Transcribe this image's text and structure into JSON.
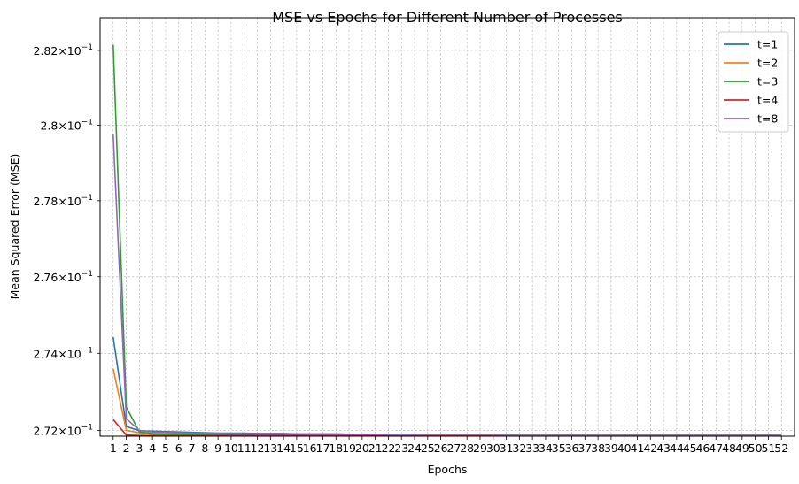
{
  "chart_data": {
    "type": "line",
    "title": "MSE vs Epochs for Different Number of Processes",
    "xlabel": "Epochs",
    "ylabel": "Mean Squared Error (MSE)",
    "yscale": "log",
    "ylim": [
      0.27185,
      0.28252
    ],
    "xlim": [
      0,
      53
    ],
    "grid": true,
    "legend_position": "top-right",
    "x": [
      1,
      2,
      3,
      4,
      5,
      6,
      7,
      8,
      9,
      10,
      11,
      12,
      13,
      14,
      15,
      16,
      17,
      18,
      19,
      20,
      21,
      22,
      23,
      24,
      25,
      26,
      27,
      28,
      29,
      30,
      31,
      32,
      33,
      34,
      35,
      36,
      37,
      38,
      39,
      40,
      41,
      42,
      43,
      44,
      45,
      46,
      47,
      48,
      49,
      50,
      51,
      52
    ],
    "yticks": [
      {
        "value": 0.272,
        "base": "2.72",
        "exp": "−1"
      },
      {
        "value": 0.274,
        "base": "2.74",
        "exp": "−1"
      },
      {
        "value": 0.276,
        "base": "2.76",
        "exp": "−1"
      },
      {
        "value": 0.278,
        "base": "2.78",
        "exp": "−1"
      },
      {
        "value": 0.28,
        "base": "2.8",
        "exp": "−1"
      },
      {
        "value": 0.282,
        "base": "2.82",
        "exp": "−1"
      }
    ],
    "series": [
      {
        "name": "t=1",
        "color": "#1f77b4",
        "values": [
          0.27442,
          0.2721,
          0.27199,
          0.27198,
          0.27197,
          0.27196,
          0.27195,
          0.27194,
          0.27193,
          0.27193,
          0.27193,
          0.27192,
          0.27192,
          0.27192,
          0.27191,
          0.27191,
          0.27191,
          0.27191,
          0.2719,
          0.2719,
          0.2719,
          0.2719,
          0.2719,
          0.2719,
          0.27189,
          0.27189,
          0.27189,
          0.27189,
          0.27189,
          0.27189,
          0.27189,
          0.27188,
          0.27188,
          0.27188,
          0.27188,
          0.27188,
          0.27188,
          0.27188,
          0.27188,
          0.27188,
          0.27188,
          0.27188,
          0.27188,
          0.27188,
          0.27188,
          0.27188,
          0.27188,
          0.27188,
          0.27188,
          0.27188,
          0.27188,
          0.27188
        ]
      },
      {
        "name": "t=2",
        "color": "#ff7f0e",
        "values": [
          0.2736,
          0.272,
          0.27194,
          0.2719,
          0.2719,
          0.2719,
          0.27189,
          0.27189,
          0.27189,
          0.27189,
          0.27189,
          0.27189,
          0.27188,
          0.27188,
          0.27188,
          0.27188,
          0.27188,
          0.27188,
          0.27188,
          0.27188,
          0.27188,
          0.27188,
          0.27188,
          0.27188,
          0.27188,
          0.27188,
          0.27188,
          0.27188,
          0.27188,
          0.27188,
          0.27188,
          0.27188,
          0.27188,
          0.27188,
          0.27188,
          0.27188,
          0.27188,
          0.27188,
          0.27188,
          0.27188,
          0.27188,
          0.27188,
          0.27188,
          0.27188,
          0.27188,
          0.27188,
          0.27188,
          0.27188,
          0.27188,
          0.27188,
          0.27188,
          0.27188
        ]
      },
      {
        "name": "t=3",
        "color": "#2ca02c",
        "values": [
          0.28215,
          0.2726,
          0.27196,
          0.27192,
          0.27191,
          0.27191,
          0.2719,
          0.2719,
          0.2719,
          0.2719,
          0.27189,
          0.27189,
          0.27189,
          0.27189,
          0.27189,
          0.27189,
          0.27189,
          0.27188,
          0.27188,
          0.27188,
          0.27188,
          0.27188,
          0.27188,
          0.27188,
          0.27188,
          0.27188,
          0.27188,
          0.27188,
          0.27188,
          0.27188,
          0.27188,
          0.27188,
          0.27188,
          0.27188,
          0.27188,
          0.27188,
          0.27188,
          0.27188,
          0.27188,
          0.27188,
          0.27188,
          0.27188,
          0.27188,
          0.27188,
          0.27188,
          0.27188,
          0.27188,
          0.27188,
          0.27188,
          0.27188,
          0.27188,
          0.27188
        ]
      },
      {
        "name": "t=4",
        "color": "#d62728",
        "values": [
          0.27228,
          0.27188,
          0.27187,
          0.27187,
          0.27187,
          0.27187,
          0.27187,
          0.27187,
          0.27187,
          0.27187,
          0.27187,
          0.27187,
          0.27187,
          0.27187,
          0.27187,
          0.27187,
          0.27187,
          0.27187,
          0.27187,
          0.27187,
          0.27187,
          0.27187,
          0.27187,
          0.27187,
          0.27187,
          0.27187,
          0.27187,
          0.27187,
          0.27187,
          0.27187,
          0.27187,
          0.27187,
          0.27187,
          0.27187,
          0.27187,
          0.27187,
          0.27187,
          0.27187,
          0.27187,
          0.27187,
          0.27187,
          0.27187,
          0.27187,
          0.27187,
          0.27187,
          0.27187,
          0.27187,
          0.27187,
          0.27187,
          0.27187,
          0.27187,
          0.27187
        ]
      },
      {
        "name": "t=8",
        "color": "#9467bd",
        "values": [
          0.27975,
          0.2723,
          0.272,
          0.27196,
          0.27195,
          0.27194,
          0.27193,
          0.27193,
          0.27192,
          0.27192,
          0.27192,
          0.27191,
          0.27191,
          0.27191,
          0.27191,
          0.2719,
          0.2719,
          0.2719,
          0.2719,
          0.2719,
          0.2719,
          0.27189,
          0.27189,
          0.27189,
          0.27189,
          0.27189,
          0.27189,
          0.27189,
          0.27189,
          0.27189,
          0.27188,
          0.27188,
          0.27188,
          0.27188,
          0.27188,
          0.27188,
          0.27188,
          0.27188,
          0.27188,
          0.27188,
          0.27188,
          0.27188,
          0.27188,
          0.27188,
          0.27188,
          0.27188,
          0.27188,
          0.27188,
          0.27188,
          0.27188,
          0.27188,
          0.27188
        ]
      }
    ]
  }
}
